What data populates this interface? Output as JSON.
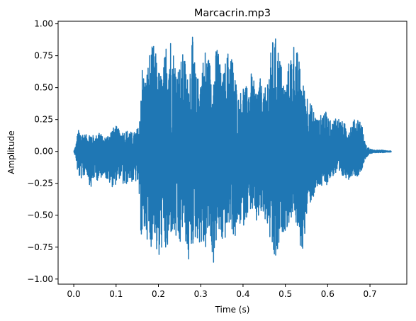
{
  "chart_data": {
    "type": "line",
    "title": "Marcacrin.mp3",
    "xlabel": "Time (s)",
    "ylabel": "Amplitude",
    "xlim": [
      -0.037,
      0.787
    ],
    "ylim": [
      -1.04,
      1.02
    ],
    "x_ticks": [
      0.0,
      0.1,
      0.2,
      0.3,
      0.4,
      0.5,
      0.6,
      0.7
    ],
    "x_tick_labels": [
      "0.0",
      "0.1",
      "0.2",
      "0.3",
      "0.4",
      "0.5",
      "0.6",
      "0.7"
    ],
    "y_ticks": [
      -1.0,
      -0.75,
      -0.5,
      -0.25,
      0.0,
      0.25,
      0.5,
      0.75,
      1.0
    ],
    "y_tick_labels": [
      "−1.00",
      "−0.75",
      "−0.50",
      "−0.25",
      "0.00",
      "0.25",
      "0.50",
      "0.75",
      "1.00"
    ],
    "grid": false,
    "series": [
      {
        "color": "#1f77b4",
        "envelope": {
          "x": [
            0.0,
            0.005,
            0.01,
            0.02,
            0.03,
            0.04,
            0.05,
            0.06,
            0.07,
            0.08,
            0.09,
            0.1,
            0.11,
            0.12,
            0.13,
            0.14,
            0.15,
            0.155,
            0.16,
            0.17,
            0.18,
            0.19,
            0.2,
            0.21,
            0.22,
            0.23,
            0.24,
            0.25,
            0.26,
            0.27,
            0.28,
            0.29,
            0.3,
            0.31,
            0.32,
            0.33,
            0.34,
            0.35,
            0.36,
            0.37,
            0.38,
            0.39,
            0.4,
            0.41,
            0.42,
            0.43,
            0.44,
            0.45,
            0.46,
            0.47,
            0.48,
            0.49,
            0.5,
            0.51,
            0.52,
            0.53,
            0.54,
            0.55,
            0.56,
            0.57,
            0.58,
            0.59,
            0.6,
            0.61,
            0.62,
            0.63,
            0.64,
            0.65,
            0.66,
            0.67,
            0.68,
            0.685,
            0.69,
            0.7,
            0.71,
            0.72,
            0.73,
            0.74,
            0.75
          ],
          "upper": [
            0.0,
            0.05,
            0.17,
            0.15,
            0.13,
            0.15,
            0.11,
            0.17,
            0.1,
            0.13,
            0.18,
            0.2,
            0.16,
            0.16,
            0.17,
            0.14,
            0.18,
            0.2,
            0.7,
            0.58,
            0.8,
            0.85,
            0.65,
            0.6,
            0.93,
            0.92,
            0.72,
            0.68,
            0.8,
            0.56,
            0.92,
            0.57,
            0.63,
            0.82,
            0.74,
            0.63,
            0.9,
            0.54,
            0.75,
            0.85,
            0.64,
            0.42,
            0.55,
            0.5,
            0.62,
            0.5,
            0.58,
            0.45,
            0.65,
            0.88,
            0.9,
            0.7,
            0.5,
            0.75,
            0.87,
            0.77,
            0.55,
            0.48,
            0.38,
            0.3,
            0.25,
            0.35,
            0.28,
            0.22,
            0.3,
            0.25,
            0.22,
            0.2,
            0.24,
            0.27,
            0.25,
            0.12,
            0.05,
            0.02,
            0.01,
            0.01,
            0.01,
            0.005,
            0.005
          ],
          "lower": [
            0.0,
            -0.05,
            -0.2,
            -0.22,
            -0.16,
            -0.3,
            -0.2,
            -0.25,
            -0.17,
            -0.24,
            -0.28,
            -0.26,
            -0.2,
            -0.3,
            -0.22,
            -0.25,
            -0.24,
            -0.4,
            -0.73,
            -0.63,
            -0.8,
            -0.62,
            -0.94,
            -0.72,
            -0.85,
            -0.65,
            -0.7,
            -0.8,
            -0.55,
            -0.92,
            -0.75,
            -0.68,
            -0.74,
            -0.8,
            -0.65,
            -0.9,
            -0.63,
            -0.74,
            -0.68,
            -0.55,
            -0.72,
            -0.58,
            -0.6,
            -0.5,
            -0.45,
            -0.6,
            -0.5,
            -0.55,
            -0.62,
            -0.88,
            -0.9,
            -0.65,
            -0.62,
            -0.58,
            -0.45,
            -0.7,
            -0.82,
            -0.53,
            -0.4,
            -0.35,
            -0.28,
            -0.3,
            -0.25,
            -0.2,
            -0.18,
            -0.22,
            -0.2,
            -0.22,
            -0.18,
            -0.2,
            -0.15,
            -0.1,
            -0.05,
            -0.02,
            -0.01,
            -0.01,
            -0.01,
            -0.005,
            -0.005
          ]
        }
      }
    ]
  }
}
